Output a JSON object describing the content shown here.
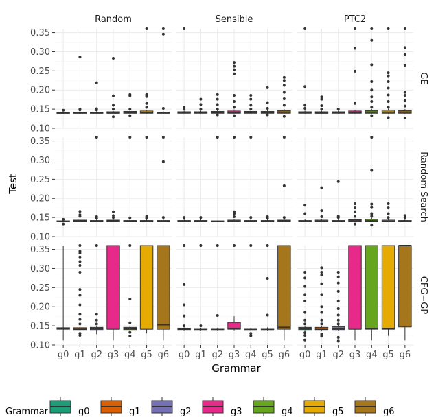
{
  "chart_data": {
    "type": "boxplot",
    "xlabel": "Grammar",
    "ylabel": "Test",
    "x_categories": [
      "g0",
      "g1",
      "g2",
      "g3",
      "g4",
      "g5",
      "g6"
    ],
    "ylim": [
      0.1,
      0.36
    ],
    "y_ticks": [
      "0.10",
      "0.15",
      "0.20",
      "0.25",
      "0.30",
      "0.35"
    ],
    "columns": [
      "Random",
      "Sensible",
      "PTC2"
    ],
    "rows": [
      "GE",
      "Random Search",
      "CFG−GP"
    ],
    "colors": {
      "g0": "#1b9e77",
      "g1": "#d95f02",
      "g2": "#7570b3",
      "g3": "#e7298a",
      "g4": "#66a61e",
      "g5": "#e6ab02",
      "g6": "#a6761d"
    },
    "legend": {
      "title": "Grammar",
      "entries": [
        "g0",
        "g1",
        "g2",
        "g3",
        "g4",
        "g5",
        "g6"
      ]
    },
    "panels": [
      {
        "row": "GE",
        "col": "Random",
        "boxes": [
          {
            "q1": 0.139,
            "med": 0.14,
            "q3": 0.141,
            "lo": 0.138,
            "hi": 0.142,
            "out": [
              0.147
            ]
          },
          {
            "q1": 0.139,
            "med": 0.14,
            "q3": 0.142,
            "lo": 0.138,
            "hi": 0.144,
            "out": [
              0.148,
              0.15,
              0.286
            ]
          },
          {
            "q1": 0.139,
            "med": 0.14,
            "q3": 0.142,
            "lo": 0.138,
            "hi": 0.144,
            "out": [
              0.148,
              0.151,
              0.219
            ]
          },
          {
            "q1": 0.139,
            "med": 0.14,
            "q3": 0.143,
            "lo": 0.138,
            "hi": 0.145,
            "out": [
              0.13,
              0.15,
              0.16,
              0.185,
              0.283
            ]
          },
          {
            "q1": 0.139,
            "med": 0.141,
            "q3": 0.144,
            "lo": 0.138,
            "hi": 0.146,
            "out": [
              0.133,
              0.15,
              0.185,
              0.188
            ]
          },
          {
            "q1": 0.139,
            "med": 0.141,
            "q3": 0.145,
            "lo": 0.138,
            "hi": 0.147,
            "out": [
              0.155,
              0.165,
              0.183,
              0.186,
              0.188,
              0.365
            ]
          },
          {
            "q1": 0.139,
            "med": 0.14,
            "q3": 0.142,
            "lo": 0.138,
            "hi": 0.144,
            "out": [
              0.152,
              0.346,
              0.365
            ]
          }
        ]
      },
      {
        "row": "GE",
        "col": "Sensible",
        "boxes": [
          {
            "q1": 0.139,
            "med": 0.141,
            "q3": 0.143,
            "lo": 0.138,
            "hi": 0.146,
            "out": [
              0.15,
              0.155,
              0.365
            ]
          },
          {
            "q1": 0.139,
            "med": 0.141,
            "q3": 0.143,
            "lo": 0.138,
            "hi": 0.146,
            "out": [
              0.15,
              0.162,
              0.176
            ]
          },
          {
            "q1": 0.139,
            "med": 0.141,
            "q3": 0.144,
            "lo": 0.138,
            "hi": 0.147,
            "out": [
              0.135,
              0.15,
              0.162,
              0.176,
              0.188
            ]
          },
          {
            "q1": 0.139,
            "med": 0.141,
            "q3": 0.145,
            "lo": 0.138,
            "hi": 0.149,
            "out": [
              0.133,
              0.155,
              0.17,
              0.186,
              0.242,
              0.253,
              0.262,
              0.272
            ]
          },
          {
            "q1": 0.139,
            "med": 0.141,
            "q3": 0.144,
            "lo": 0.138,
            "hi": 0.147,
            "out": [
              0.15,
              0.16,
              0.176,
              0.186
            ]
          },
          {
            "q1": 0.139,
            "med": 0.141,
            "q3": 0.144,
            "lo": 0.138,
            "hi": 0.147,
            "out": [
              0.135,
              0.152,
              0.167,
              0.206
            ]
          },
          {
            "q1": 0.139,
            "med": 0.142,
            "q3": 0.146,
            "lo": 0.138,
            "hi": 0.15,
            "out": [
              0.131,
              0.16,
              0.177,
              0.194,
              0.212,
              0.225,
              0.233
            ]
          }
        ]
      },
      {
        "row": "GE",
        "col": "PTC2",
        "boxes": [
          {
            "q1": 0.139,
            "med": 0.141,
            "q3": 0.143,
            "lo": 0.138,
            "hi": 0.146,
            "out": [
              0.152,
              0.16,
              0.209,
              0.365
            ]
          },
          {
            "q1": 0.139,
            "med": 0.14,
            "q3": 0.143,
            "lo": 0.138,
            "hi": 0.146,
            "out": [
              0.15,
              0.159,
              0.176,
              0.182
            ]
          },
          {
            "q1": 0.139,
            "med": 0.141,
            "q3": 0.143,
            "lo": 0.138,
            "hi": 0.146,
            "out": [
              0.15
            ]
          },
          {
            "q1": 0.139,
            "med": 0.141,
            "q3": 0.145,
            "lo": 0.138,
            "hi": 0.148,
            "out": [
              0.165,
              0.249,
              0.309,
              0.365
            ]
          },
          {
            "q1": 0.139,
            "med": 0.142,
            "q3": 0.146,
            "lo": 0.138,
            "hi": 0.15,
            "out": [
              0.133,
              0.155,
              0.17,
              0.182,
              0.2,
              0.222,
              0.266,
              0.33,
              0.365
            ]
          },
          {
            "q1": 0.139,
            "med": 0.142,
            "q3": 0.147,
            "lo": 0.138,
            "hi": 0.151,
            "out": [
              0.128,
              0.155,
              0.17,
              0.187,
              0.205,
              0.222,
              0.237,
              0.245,
              0.365
            ]
          },
          {
            "q1": 0.139,
            "med": 0.142,
            "q3": 0.146,
            "lo": 0.138,
            "hi": 0.15,
            "out": [
              0.127,
              0.158,
              0.172,
              0.186,
              0.194,
              0.265,
              0.292,
              0.311,
              0.365
            ]
          }
        ]
      },
      {
        "row": "Random Search",
        "col": "Random",
        "boxes": [
          {
            "q1": 0.139,
            "med": 0.14,
            "q3": 0.141,
            "lo": 0.138,
            "hi": 0.142,
            "out": [
              0.133,
              0.145
            ]
          },
          {
            "q1": 0.139,
            "med": 0.141,
            "q3": 0.143,
            "lo": 0.138,
            "hi": 0.147,
            "out": [
              0.153,
              0.157,
              0.166
            ]
          },
          {
            "q1": 0.139,
            "med": 0.14,
            "q3": 0.142,
            "lo": 0.138,
            "hi": 0.145,
            "out": [
              0.148,
              0.152,
              0.365
            ]
          },
          {
            "q1": 0.139,
            "med": 0.141,
            "q3": 0.143,
            "lo": 0.138,
            "hi": 0.146,
            "out": [
              0.15,
              0.155,
              0.165
            ]
          },
          {
            "q1": 0.139,
            "med": 0.14,
            "q3": 0.142,
            "lo": 0.138,
            "hi": 0.145,
            "out": [
              0.149,
              0.365
            ]
          },
          {
            "q1": 0.139,
            "med": 0.14,
            "q3": 0.142,
            "lo": 0.138,
            "hi": 0.145,
            "out": [
              0.148,
              0.15,
              0.153,
              0.365
            ]
          },
          {
            "q1": 0.139,
            "med": 0.14,
            "q3": 0.142,
            "lo": 0.138,
            "hi": 0.145,
            "out": [
              0.15,
              0.296,
              0.365
            ]
          }
        ]
      },
      {
        "row": "Random Search",
        "col": "Sensible",
        "boxes": [
          {
            "q1": 0.139,
            "med": 0.14,
            "q3": 0.142,
            "lo": 0.138,
            "hi": 0.145,
            "out": [
              0.15
            ]
          },
          {
            "q1": 0.139,
            "med": 0.14,
            "q3": 0.142,
            "lo": 0.138,
            "hi": 0.145,
            "out": [
              0.15
            ]
          },
          {
            "q1": 0.139,
            "med": 0.14,
            "q3": 0.141,
            "lo": 0.138,
            "hi": 0.142,
            "out": [
              0.365
            ]
          },
          {
            "q1": 0.139,
            "med": 0.14,
            "q3": 0.143,
            "lo": 0.138,
            "hi": 0.146,
            "out": [
              0.152,
              0.16,
              0.165,
              0.365
            ]
          },
          {
            "q1": 0.139,
            "med": 0.14,
            "q3": 0.142,
            "lo": 0.138,
            "hi": 0.145,
            "out": [
              0.15,
              0.365
            ]
          },
          {
            "q1": 0.139,
            "med": 0.14,
            "q3": 0.142,
            "lo": 0.138,
            "hi": 0.145,
            "out": [
              0.148,
              0.152
            ]
          },
          {
            "q1": 0.139,
            "med": 0.141,
            "q3": 0.143,
            "lo": 0.138,
            "hi": 0.146,
            "out": [
              0.15,
              0.233,
              0.365
            ]
          }
        ]
      },
      {
        "row": "Random Search",
        "col": "PTC2",
        "boxes": [
          {
            "q1": 0.139,
            "med": 0.14,
            "q3": 0.142,
            "lo": 0.138,
            "hi": 0.145,
            "out": [
              0.16,
              0.182
            ]
          },
          {
            "q1": 0.139,
            "med": 0.14,
            "q3": 0.143,
            "lo": 0.138,
            "hi": 0.146,
            "out": [
              0.152,
              0.168,
              0.228
            ]
          },
          {
            "q1": 0.139,
            "med": 0.14,
            "q3": 0.142,
            "lo": 0.138,
            "hi": 0.145,
            "out": [
              0.15,
              0.153,
              0.244
            ]
          },
          {
            "q1": 0.139,
            "med": 0.141,
            "q3": 0.144,
            "lo": 0.138,
            "hi": 0.147,
            "out": [
              0.133,
              0.153,
              0.165,
              0.175,
              0.186
            ]
          },
          {
            "q1": 0.139,
            "med": 0.141,
            "q3": 0.145,
            "lo": 0.138,
            "hi": 0.149,
            "out": [
              0.13,
              0.153,
              0.16,
              0.176,
              0.185,
              0.273,
              0.365
            ]
          },
          {
            "q1": 0.139,
            "med": 0.14,
            "q3": 0.143,
            "lo": 0.138,
            "hi": 0.146,
            "out": [
              0.15,
              0.16,
              0.175,
              0.186
            ]
          },
          {
            "q1": 0.139,
            "med": 0.14,
            "q3": 0.142,
            "lo": 0.138,
            "hi": 0.145,
            "out": [
              0.15,
              0.155
            ]
          }
        ]
      },
      {
        "row": "CFG−GP",
        "col": "Random",
        "boxes": [
          {
            "q1": 0.141,
            "med": 0.143,
            "q3": 0.145,
            "lo": 0.112,
            "hi": 0.365,
            "out": []
          },
          {
            "q1": 0.14,
            "med": 0.142,
            "q3": 0.145,
            "lo": 0.138,
            "hi": 0.148,
            "out": [
              0.125,
              0.13,
              0.155,
              0.167,
              0.18,
              0.205,
              0.23,
              0.245,
              0.29,
              0.308,
              0.318,
              0.33,
              0.34,
              0.345,
              0.365
            ]
          },
          {
            "q1": 0.14,
            "med": 0.143,
            "q3": 0.146,
            "lo": 0.128,
            "hi": 0.15,
            "out": [
              0.155,
              0.165,
              0.18,
              0.365
            ]
          },
          {
            "q1": 0.141,
            "med": 0.142,
            "q3": 0.365,
            "lo": 0.112,
            "hi": 0.365,
            "out": []
          },
          {
            "q1": 0.14,
            "med": 0.143,
            "q3": 0.146,
            "lo": 0.138,
            "hi": 0.15,
            "out": [
              0.123,
              0.133,
              0.158,
              0.22,
              0.365
            ]
          },
          {
            "q1": 0.141,
            "med": 0.142,
            "q3": 0.365,
            "lo": 0.13,
            "hi": 0.365,
            "out": []
          },
          {
            "q1": 0.141,
            "med": 0.153,
            "q3": 0.365,
            "lo": 0.112,
            "hi": 0.365,
            "out": []
          }
        ]
      },
      {
        "row": "CFG−GP",
        "col": "Sensible",
        "boxes": [
          {
            "q1": 0.14,
            "med": 0.142,
            "q3": 0.144,
            "lo": 0.138,
            "hi": 0.146,
            "out": [
              0.15,
              0.176,
              0.205,
              0.258,
              0.365
            ]
          },
          {
            "q1": 0.14,
            "med": 0.141,
            "q3": 0.143,
            "lo": 0.138,
            "hi": 0.145,
            "out": [
              0.15,
              0.365
            ]
          },
          {
            "q1": 0.14,
            "med": 0.141,
            "q3": 0.143,
            "lo": 0.138,
            "hi": 0.145,
            "out": [
              0.177,
              0.365
            ]
          },
          {
            "q1": 0.141,
            "med": 0.143,
            "q3": 0.159,
            "lo": 0.138,
            "hi": 0.175,
            "out": [
              0.365
            ]
          },
          {
            "q1": 0.14,
            "med": 0.141,
            "q3": 0.143,
            "lo": 0.138,
            "hi": 0.145,
            "out": [
              0.124,
              0.13,
              0.365
            ]
          },
          {
            "q1": 0.14,
            "med": 0.141,
            "q3": 0.143,
            "lo": 0.138,
            "hi": 0.146,
            "out": [
              0.178,
              0.274,
              0.365
            ]
          },
          {
            "q1": 0.141,
            "med": 0.146,
            "q3": 0.365,
            "lo": 0.112,
            "hi": 0.365,
            "out": []
          }
        ]
      },
      {
        "row": "CFG−GP",
        "col": "PTC2",
        "boxes": [
          {
            "q1": 0.14,
            "med": 0.143,
            "q3": 0.146,
            "lo": 0.138,
            "hi": 0.15,
            "out": [
              0.113,
              0.125,
              0.132,
              0.155,
              0.165,
              0.185,
              0.215,
              0.232,
              0.253,
              0.275,
              0.29
            ]
          },
          {
            "q1": 0.14,
            "med": 0.142,
            "q3": 0.146,
            "lo": 0.138,
            "hi": 0.15,
            "out": [
              0.123,
              0.128,
              0.155,
              0.165,
              0.185,
              0.2,
              0.232,
              0.26,
              0.283,
              0.29,
              0.302
            ]
          },
          {
            "q1": 0.14,
            "med": 0.143,
            "q3": 0.148,
            "lo": 0.138,
            "hi": 0.152,
            "out": [
              0.11,
              0.12,
              0.155,
              0.165,
              0.178,
              0.195,
              0.215,
              0.24,
              0.262,
              0.278,
              0.29
            ]
          },
          {
            "q1": 0.141,
            "med": 0.142,
            "q3": 0.365,
            "lo": 0.112,
            "hi": 0.365,
            "out": []
          },
          {
            "q1": 0.141,
            "med": 0.143,
            "q3": 0.365,
            "lo": 0.112,
            "hi": 0.365,
            "out": []
          },
          {
            "q1": 0.141,
            "med": 0.143,
            "q3": 0.365,
            "lo": 0.124,
            "hi": 0.365,
            "out": []
          },
          {
            "q1": 0.147,
            "med": 0.365,
            "q3": 0.365,
            "lo": 0.112,
            "hi": 0.365,
            "out": []
          }
        ]
      }
    ]
  }
}
